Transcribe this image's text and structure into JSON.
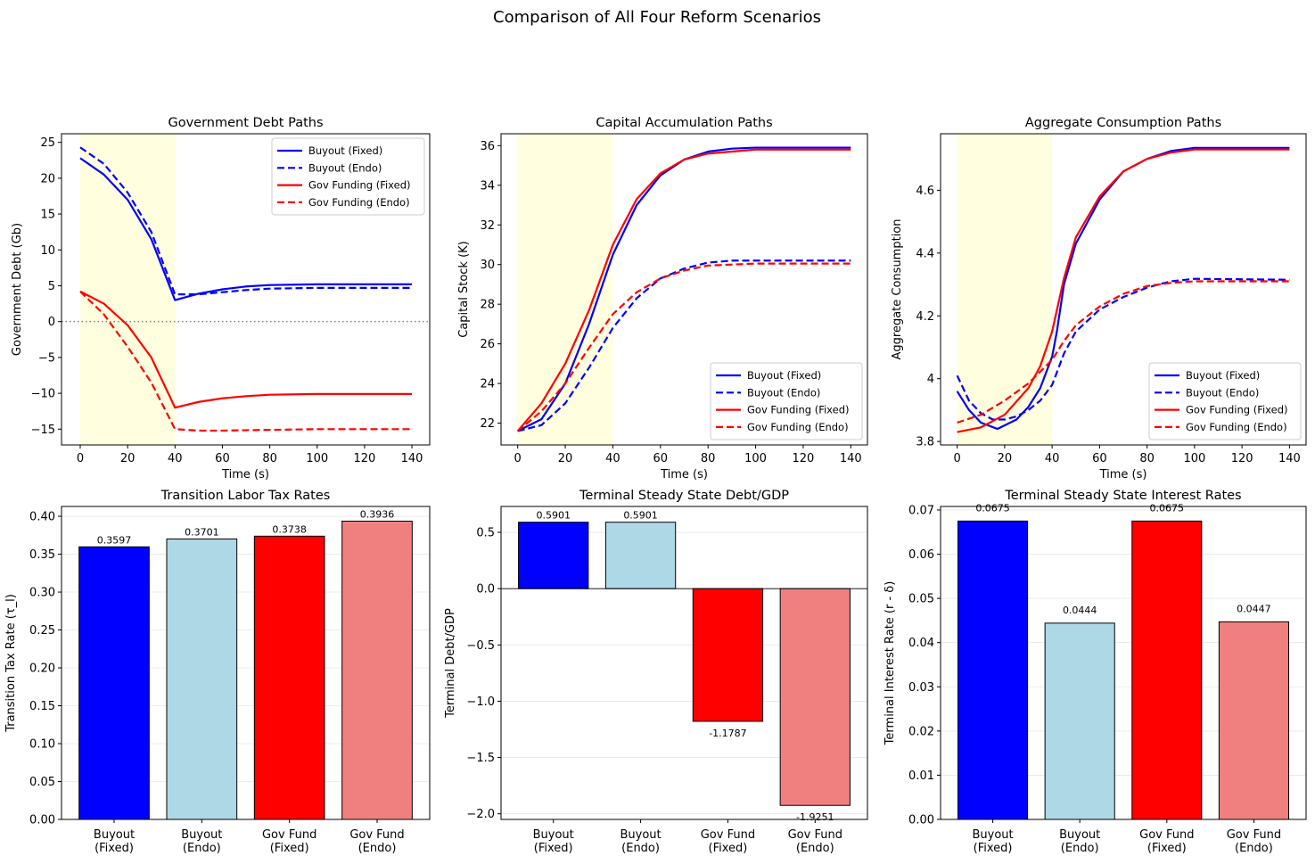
{
  "suptitle": "Comparison of All Four Reform Scenarios",
  "colors": {
    "buyout_fixed": "#0000ff",
    "buyout_endo": "#add8e6",
    "gov_fixed": "#ff0000",
    "gov_endo": "#f08080",
    "shade": "#ffffe0",
    "zero_line": "#808080"
  },
  "chart_data": [
    {
      "type": "line",
      "title": "Government Debt Paths",
      "xlabel": "Time (s)",
      "ylabel": "Government Debt (Gb)",
      "xlim": [
        -7.9,
        147.5
      ],
      "ylim": [
        -17.2,
        26.2
      ],
      "xticks": [
        0,
        20,
        40,
        60,
        80,
        100,
        120,
        140
      ],
      "yticks": [
        -15,
        -10,
        -5,
        0,
        5,
        10,
        15,
        20,
        25
      ],
      "shaded_interval": [
        0,
        40
      ],
      "hline": 0,
      "legend": "top-right",
      "grid": false,
      "series": [
        {
          "name": "Buyout (Fixed)",
          "color": "#0000ff",
          "dash": false,
          "points": [
            [
              0,
              22.8
            ],
            [
              10,
              20.5
            ],
            [
              20,
              17
            ],
            [
              30,
              11.5
            ],
            [
              40,
              3.0
            ],
            [
              50,
              3.9
            ],
            [
              60,
              4.5
            ],
            [
              70,
              4.9
            ],
            [
              80,
              5.1
            ],
            [
              100,
              5.2
            ],
            [
              140,
              5.2
            ]
          ]
        },
        {
          "name": "Buyout (Endo)",
          "color": "#0000ff",
          "dash": true,
          "points": [
            [
              0,
              24.3
            ],
            [
              10,
              22
            ],
            [
              20,
              18
            ],
            [
              30,
              12.5
            ],
            [
              40,
              3.8
            ],
            [
              50,
              3.8
            ],
            [
              60,
              4.1
            ],
            [
              70,
              4.4
            ],
            [
              80,
              4.6
            ],
            [
              100,
              4.7
            ],
            [
              140,
              4.7
            ]
          ]
        },
        {
          "name": "Gov Funding (Fixed)",
          "color": "#ff0000",
          "dash": false,
          "points": [
            [
              0,
              4.2
            ],
            [
              10,
              2.5
            ],
            [
              20,
              -0.5
            ],
            [
              30,
              -5
            ],
            [
              40,
              -12
            ],
            [
              50,
              -11.2
            ],
            [
              60,
              -10.7
            ],
            [
              70,
              -10.4
            ],
            [
              80,
              -10.2
            ],
            [
              100,
              -10.1
            ],
            [
              140,
              -10.1
            ]
          ]
        },
        {
          "name": "Gov Funding (Endo)",
          "color": "#ff0000",
          "dash": true,
          "points": [
            [
              0,
              4.2
            ],
            [
              10,
              1
            ],
            [
              20,
              -3.5
            ],
            [
              30,
              -8.5
            ],
            [
              40,
              -15
            ],
            [
              50,
              -15.2
            ],
            [
              60,
              -15.2
            ],
            [
              80,
              -15.1
            ],
            [
              100,
              -15.0
            ],
            [
              140,
              -15.0
            ]
          ]
        }
      ]
    },
    {
      "type": "line",
      "title": "Capital Accumulation Paths",
      "xlabel": "Time (s)",
      "ylabel": "Capital Stock (K)",
      "xlim": [
        -7,
        147
      ],
      "ylim": [
        20.9,
        36.6
      ],
      "xticks": [
        0,
        20,
        40,
        60,
        80,
        100,
        120,
        140
      ],
      "yticks": [
        22,
        24,
        26,
        28,
        30,
        32,
        34,
        36
      ],
      "shaded_interval": [
        0,
        40
      ],
      "legend": "lower-right",
      "grid": false,
      "series": [
        {
          "name": "Buyout (Fixed)",
          "color": "#0000ff",
          "dash": false,
          "points": [
            [
              0,
              21.6
            ],
            [
              10,
              22.2
            ],
            [
              20,
              24
            ],
            [
              30,
              27
            ],
            [
              40,
              30.5
            ],
            [
              50,
              33
            ],
            [
              60,
              34.5
            ],
            [
              70,
              35.3
            ],
            [
              80,
              35.7
            ],
            [
              90,
              35.85
            ],
            [
              100,
              35.9
            ],
            [
              140,
              35.9
            ]
          ]
        },
        {
          "name": "Buyout (Endo)",
          "color": "#0000ff",
          "dash": true,
          "points": [
            [
              0,
              21.6
            ],
            [
              10,
              21.9
            ],
            [
              20,
              23
            ],
            [
              30,
              24.8
            ],
            [
              40,
              26.8
            ],
            [
              50,
              28.3
            ],
            [
              60,
              29.3
            ],
            [
              70,
              29.8
            ],
            [
              80,
              30.1
            ],
            [
              90,
              30.2
            ],
            [
              100,
              30.2
            ],
            [
              140,
              30.2
            ]
          ]
        },
        {
          "name": "Gov Funding (Fixed)",
          "color": "#ff0000",
          "dash": false,
          "points": [
            [
              0,
              21.6
            ],
            [
              10,
              23
            ],
            [
              20,
              25
            ],
            [
              30,
              27.7
            ],
            [
              40,
              31
            ],
            [
              50,
              33.3
            ],
            [
              60,
              34.6
            ],
            [
              70,
              35.3
            ],
            [
              80,
              35.6
            ],
            [
              100,
              35.8
            ],
            [
              140,
              35.8
            ]
          ]
        },
        {
          "name": "Gov Funding (Endo)",
          "color": "#ff0000",
          "dash": true,
          "points": [
            [
              0,
              21.6
            ],
            [
              10,
              22.6
            ],
            [
              20,
              24
            ],
            [
              30,
              25.8
            ],
            [
              40,
              27.5
            ],
            [
              50,
              28.6
            ],
            [
              60,
              29.3
            ],
            [
              70,
              29.7
            ],
            [
              80,
              29.95
            ],
            [
              100,
              30.05
            ],
            [
              140,
              30.05
            ]
          ]
        }
      ]
    },
    {
      "type": "line",
      "title": "Aggregate Consumption Paths",
      "xlabel": "Time (s)",
      "ylabel": "Aggregate Consumption",
      "xlim": [
        -7,
        147
      ],
      "ylim": [
        3.789,
        4.78
      ],
      "xticks": [
        0,
        20,
        40,
        60,
        80,
        100,
        120,
        140
      ],
      "yticks": [
        3.8,
        4.0,
        4.2,
        4.4,
        4.6
      ],
      "shaded_interval": [
        0,
        40
      ],
      "legend": "lower-right",
      "grid": false,
      "series": [
        {
          "name": "Buyout (Fixed)",
          "color": "#0000ff",
          "dash": false,
          "points": [
            [
              0,
              3.96
            ],
            [
              5,
              3.9
            ],
            [
              10,
              3.86
            ],
            [
              17,
              3.84
            ],
            [
              25,
              3.87
            ],
            [
              30,
              3.91
            ],
            [
              35,
              3.97
            ],
            [
              40,
              4.07
            ],
            [
              42,
              4.15
            ],
            [
              45,
              4.3
            ],
            [
              50,
              4.43
            ],
            [
              60,
              4.57
            ],
            [
              70,
              4.66
            ],
            [
              80,
              4.7
            ],
            [
              90,
              4.725
            ],
            [
              100,
              4.735
            ],
            [
              140,
              4.735
            ]
          ]
        },
        {
          "name": "Buyout (Endo)",
          "color": "#0000ff",
          "dash": true,
          "points": [
            [
              0,
              4.01
            ],
            [
              5,
              3.93
            ],
            [
              10,
              3.89
            ],
            [
              15,
              3.87
            ],
            [
              20,
              3.87
            ],
            [
              25,
              3.88
            ],
            [
              30,
              3.9
            ],
            [
              35,
              3.93
            ],
            [
              40,
              3.98
            ],
            [
              45,
              4.08
            ],
            [
              50,
              4.15
            ],
            [
              60,
              4.22
            ],
            [
              70,
              4.26
            ],
            [
              80,
              4.29
            ],
            [
              90,
              4.31
            ],
            [
              100,
              4.318
            ],
            [
              140,
              4.315
            ]
          ]
        },
        {
          "name": "Gov Funding (Fixed)",
          "color": "#ff0000",
          "dash": false,
          "points": [
            [
              0,
              3.83
            ],
            [
              10,
              3.845
            ],
            [
              20,
              3.885
            ],
            [
              30,
              3.97
            ],
            [
              35,
              4.04
            ],
            [
              40,
              4.15
            ],
            [
              45,
              4.32
            ],
            [
              50,
              4.45
            ],
            [
              60,
              4.58
            ],
            [
              70,
              4.66
            ],
            [
              80,
              4.7
            ],
            [
              90,
              4.72
            ],
            [
              100,
              4.73
            ],
            [
              140,
              4.73
            ]
          ]
        },
        {
          "name": "Gov Funding (Endo)",
          "color": "#ff0000",
          "dash": true,
          "points": [
            [
              0,
              3.86
            ],
            [
              10,
              3.885
            ],
            [
              20,
              3.93
            ],
            [
              30,
              3.985
            ],
            [
              40,
              4.06
            ],
            [
              45,
              4.12
            ],
            [
              50,
              4.17
            ],
            [
              60,
              4.23
            ],
            [
              70,
              4.27
            ],
            [
              80,
              4.295
            ],
            [
              90,
              4.305
            ],
            [
              100,
              4.31
            ],
            [
              140,
              4.31
            ]
          ]
        }
      ]
    },
    {
      "type": "bar",
      "title": "Transition Labor Tax Rates",
      "xlabel": "",
      "ylabel": "Transition Tax Rate (τ_l)",
      "categories": [
        "Buyout\n(Fixed)",
        "Buyout\n(Endo)",
        "Gov Fund\n(Fixed)",
        "Gov Fund\n(Endo)"
      ],
      "values": [
        0.3597,
        0.3701,
        0.3738,
        0.3936
      ],
      "labels": [
        "0.3597",
        "0.3701",
        "0.3738",
        "0.3936"
      ],
      "colors": [
        "#0000ff",
        "#add8e6",
        "#ff0000",
        "#f08080"
      ],
      "ylim": [
        0,
        0.413
      ],
      "yticks": [
        0,
        0.05,
        0.1,
        0.15,
        0.2,
        0.25,
        0.3,
        0.35,
        0.4
      ],
      "ytick_decimals": 2,
      "grid": true
    },
    {
      "type": "bar",
      "title": "Terminal Steady State Debt/GDP",
      "xlabel": "",
      "ylabel": "Terminal Debt/GDP",
      "categories": [
        "Buyout\n(Fixed)",
        "Buyout\n(Endo)",
        "Gov Fund\n(Fixed)",
        "Gov Fund\n(Endo)"
      ],
      "values": [
        0.5901,
        0.5901,
        -1.1787,
        -1.9251
      ],
      "labels": [
        "0.5901",
        "0.5901",
        "-1.1787",
        "-1.9251"
      ],
      "colors": [
        "#0000ff",
        "#add8e6",
        "#ff0000",
        "#f08080"
      ],
      "ylim": [
        -2.05,
        0.73
      ],
      "yticks": [
        -2.0,
        -1.5,
        -1.0,
        -0.5,
        0.0,
        0.5
      ],
      "ytick_decimals": 1,
      "grid": true,
      "hline": 0
    },
    {
      "type": "bar",
      "title": "Terminal Steady State Interest Rates",
      "xlabel": "",
      "ylabel": "Terminal Interest Rate (r - δ)",
      "categories": [
        "Buyout\n(Fixed)",
        "Buyout\n(Endo)",
        "Gov Fund\n(Fixed)",
        "Gov Fund\n(Endo)"
      ],
      "values": [
        0.0675,
        0.0444,
        0.0675,
        0.0447
      ],
      "labels": [
        "0.0675",
        "0.0444",
        "0.0675",
        "0.0447"
      ],
      "colors": [
        "#0000ff",
        "#add8e6",
        "#ff0000",
        "#f08080"
      ],
      "ylim": [
        0,
        0.0708
      ],
      "yticks": [
        0,
        0.01,
        0.02,
        0.03,
        0.04,
        0.05,
        0.06,
        0.07
      ],
      "ytick_decimals": 2,
      "grid": true
    }
  ]
}
